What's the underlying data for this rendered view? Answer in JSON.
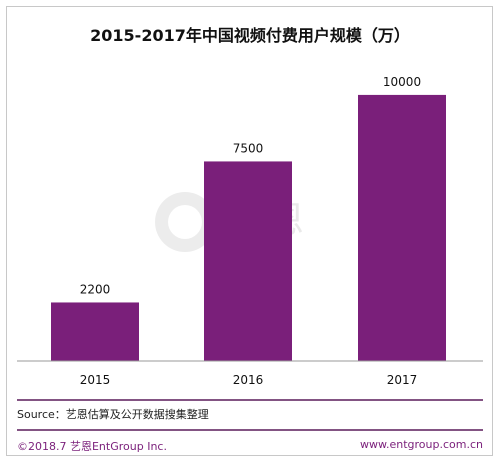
{
  "chart_data": {
    "type": "bar",
    "title": "2015-2017年中国视频付费用户规模（万）",
    "categories": [
      "2015",
      "2016",
      "2017"
    ],
    "values": [
      2200,
      7500,
      10000
    ],
    "xlabel": "",
    "ylabel": "",
    "ylim": [
      0,
      11500
    ],
    "grid": false,
    "legend": "none",
    "bar_color": "#7a1f7a"
  },
  "source_text": "Source：艺恩估算及公开数据搜集整理",
  "footer": {
    "copyright": "©2018.7  艺恩EntGroup Inc.",
    "website": "www.entgroup.com.cn"
  },
  "watermark": {
    "brand_cn": "艺恩",
    "brand_en": "entgroup",
    "icon": "entgroup-logo-icon"
  },
  "colors": {
    "accent": "#7a1f7a",
    "rule": "#5a1a5a"
  }
}
